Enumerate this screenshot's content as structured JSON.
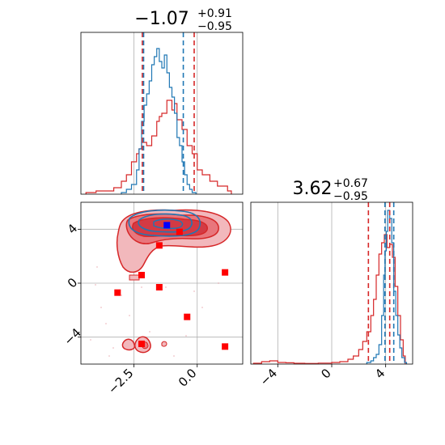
{
  "colors": {
    "red": "#d62728",
    "blue": "#1f77b4",
    "grid": "#b0b0b0",
    "marker": "#ff0000",
    "marker_blue": "#0000ff"
  },
  "chart_data": [
    {
      "type": "histogram",
      "panel": "top-left (parameter 1 marginal)",
      "title_main": "−1.07",
      "title_sup": "+0.91",
      "title_sub": "−0.95",
      "xlim": [
        -4.6,
        1.8
      ],
      "grid": true,
      "series": [
        {
          "color": "blue",
          "quantiles": [
            -2.12,
            -0.55
          ],
          "bins": [
            [
              -3.0,
              0.01
            ],
            [
              -2.8,
              0.03
            ],
            [
              -2.6,
              0.06
            ],
            [
              -2.4,
              0.15
            ],
            [
              -2.3,
              0.28
            ],
            [
              -2.2,
              0.45
            ],
            [
              -2.1,
              0.55
            ],
            [
              -2.0,
              0.62
            ],
            [
              -1.9,
              0.7
            ],
            [
              -1.8,
              0.8
            ],
            [
              -1.7,
              0.85
            ],
            [
              -1.6,
              0.9
            ],
            [
              -1.5,
              0.82
            ],
            [
              -1.4,
              0.78
            ],
            [
              -1.3,
              0.86
            ],
            [
              -1.2,
              0.75
            ],
            [
              -1.1,
              0.66
            ],
            [
              -1.0,
              0.6
            ],
            [
              -0.9,
              0.5
            ],
            [
              -0.8,
              0.35
            ],
            [
              -0.7,
              0.3
            ],
            [
              -0.6,
              0.2
            ],
            [
              -0.5,
              0.12
            ],
            [
              -0.4,
              0.06
            ],
            [
              -0.3,
              0.03
            ],
            [
              -0.2,
              0.01
            ]
          ]
        },
        {
          "color": "red",
          "quantiles": [
            -2.17,
            -0.12
          ],
          "bins": [
            [
              -4.4,
              0.01
            ],
            [
              -4.0,
              0.02
            ],
            [
              -3.6,
              0.02
            ],
            [
              -3.3,
              0.04
            ],
            [
              -3.0,
              0.08
            ],
            [
              -2.8,
              0.12
            ],
            [
              -2.6,
              0.2
            ],
            [
              -2.4,
              0.25
            ],
            [
              -2.3,
              0.28
            ],
            [
              -2.2,
              0.32
            ],
            [
              -2.0,
              0.3
            ],
            [
              -1.8,
              0.36
            ],
            [
              -1.6,
              0.45
            ],
            [
              -1.5,
              0.48
            ],
            [
              -1.4,
              0.5
            ],
            [
              -1.2,
              0.58
            ],
            [
              -1.0,
              0.52
            ],
            [
              -0.9,
              0.56
            ],
            [
              -0.8,
              0.46
            ],
            [
              -0.6,
              0.4
            ],
            [
              -0.4,
              0.3
            ],
            [
              -0.2,
              0.25
            ],
            [
              0.0,
              0.15
            ],
            [
              0.2,
              0.12
            ],
            [
              0.5,
              0.08
            ],
            [
              0.8,
              0.05
            ],
            [
              1.2,
              0.02
            ]
          ]
        }
      ]
    },
    {
      "type": "contour",
      "panel": "bottom-left (joint)",
      "xlim": [
        -4.6,
        1.8
      ],
      "ylim": [
        -6,
        6
      ],
      "x_ticks": [
        "−2.5",
        "0.0"
      ],
      "y_ticks": [
        "−4",
        "0",
        "4"
      ],
      "grid": true,
      "markers_red": [
        [
          -3.15,
          -0.7
        ],
        [
          -2.2,
          0.6
        ],
        [
          -1.5,
          -0.3
        ],
        [
          -1.5,
          2.8
        ],
        [
          -0.4,
          -2.5
        ],
        [
          1.1,
          0.8
        ],
        [
          1.1,
          -4.7
        ],
        [
          -2.2,
          -4.5
        ],
        [
          -0.7,
          3.8
        ]
      ],
      "marker_blue": [
        -1.2,
        4.3
      ]
    },
    {
      "type": "histogram",
      "panel": "bottom-right (parameter 2 marginal)",
      "title_main": "3.62",
      "title_sup": "+0.67",
      "title_sub": "−0.95",
      "xlim": [
        -6,
        6
      ],
      "x_ticks": [
        "−4",
        "0",
        "4"
      ],
      "grid": true,
      "series": [
        {
          "color": "blue",
          "quantiles": [
            3.95,
            4.6
          ],
          "bins": [
            [
              2.6,
              0.01
            ],
            [
              2.9,
              0.02
            ],
            [
              3.1,
              0.04
            ],
            [
              3.3,
              0.06
            ],
            [
              3.5,
              0.12
            ],
            [
              3.7,
              0.3
            ],
            [
              3.85,
              0.55
            ],
            [
              3.95,
              0.7
            ],
            [
              4.05,
              0.82
            ],
            [
              4.15,
              0.95
            ],
            [
              4.3,
              0.9
            ],
            [
              4.45,
              0.75
            ],
            [
              4.6,
              0.45
            ],
            [
              4.75,
              0.3
            ],
            [
              4.9,
              0.18
            ],
            [
              5.05,
              0.1
            ],
            [
              5.2,
              0.04
            ],
            [
              5.4,
              0.01
            ]
          ]
        },
        {
          "color": "red",
          "quantiles": [
            2.72,
            4.3
          ],
          "bins": [
            [
              -5.8,
              0.005
            ],
            [
              -5.2,
              0.015
            ],
            [
              -4.6,
              0.02
            ],
            [
              -4.0,
              0.01
            ],
            [
              -3.4,
              0.008
            ],
            [
              -2.8,
              0.005
            ],
            [
              -2.0,
              0.004
            ],
            [
              -1.0,
              0.006
            ],
            [
              0.0,
              0.01
            ],
            [
              0.6,
              0.015
            ],
            [
              1.2,
              0.03
            ],
            [
              1.6,
              0.05
            ],
            [
              2.0,
              0.09
            ],
            [
              2.3,
              0.14
            ],
            [
              2.6,
              0.2
            ],
            [
              2.9,
              0.3
            ],
            [
              3.1,
              0.4
            ],
            [
              3.3,
              0.55
            ],
            [
              3.5,
              0.68
            ],
            [
              3.7,
              0.75
            ],
            [
              3.9,
              0.8
            ],
            [
              4.1,
              0.72
            ],
            [
              4.3,
              0.74
            ],
            [
              4.5,
              0.66
            ],
            [
              4.7,
              0.48
            ],
            [
              4.9,
              0.3
            ],
            [
              5.1,
              0.15
            ],
            [
              5.3,
              0.05
            ]
          ]
        }
      ]
    }
  ]
}
